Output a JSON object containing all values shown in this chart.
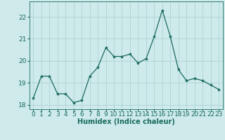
{
  "x": [
    0,
    1,
    2,
    3,
    4,
    5,
    6,
    7,
    8,
    9,
    10,
    11,
    12,
    13,
    14,
    15,
    16,
    17,
    18,
    19,
    20,
    21,
    22,
    23
  ],
  "y": [
    18.3,
    19.3,
    19.3,
    18.5,
    18.5,
    18.1,
    18.2,
    19.3,
    19.7,
    20.6,
    20.2,
    20.2,
    20.3,
    19.9,
    20.1,
    21.1,
    22.3,
    21.1,
    19.6,
    19.1,
    19.2,
    19.1,
    18.9,
    18.7
  ],
  "line_color": "#1a6b5e",
  "marker": "*",
  "marker_size": 3,
  "bg_color": "#ceeaea",
  "grid_color": "#aacfcf",
  "xlabel": "Humidex (Indice chaleur)",
  "ylim": [
    17.8,
    22.7
  ],
  "xlim": [
    -0.5,
    23.5
  ],
  "yticks": [
    18,
    19,
    20,
    21,
    22
  ],
  "xtick_labels": [
    "0",
    "1",
    "2",
    "3",
    "4",
    "5",
    "6",
    "7",
    "8",
    "9",
    "10",
    "11",
    "12",
    "13",
    "14",
    "15",
    "16",
    "17",
    "18",
    "19",
    "20",
    "21",
    "22",
    "23"
  ],
  "xlabel_fontsize": 7,
  "tick_fontsize": 6.5,
  "label_color": "#1a6b5e"
}
